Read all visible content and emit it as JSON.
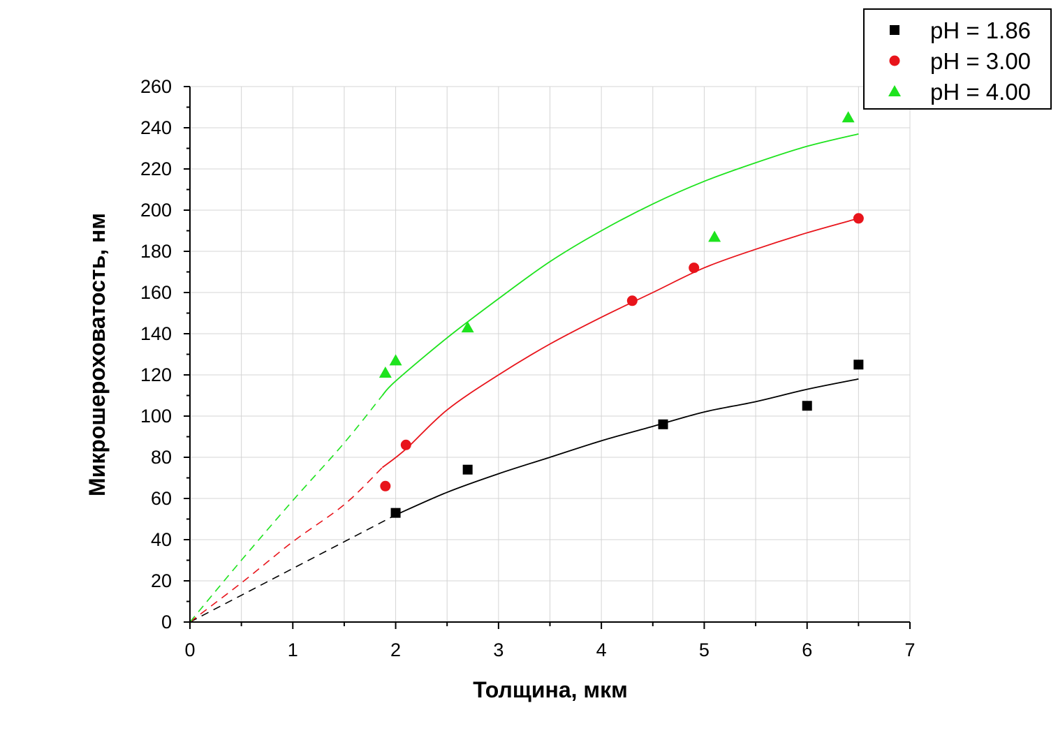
{
  "chart_data": {
    "type": "scatter",
    "xlabel": "Толщина, мкм",
    "ylabel": "Микрошероховатость, нм",
    "xlim": [
      0,
      7
    ],
    "ylim": [
      0,
      260
    ],
    "x_ticks": [
      0,
      1,
      2,
      3,
      4,
      5,
      6,
      7
    ],
    "y_ticks": [
      0,
      20,
      40,
      60,
      80,
      100,
      120,
      140,
      160,
      180,
      200,
      220,
      240,
      260
    ],
    "x_tick_labels": [
      "0",
      "1",
      "2",
      "3",
      "4",
      "5",
      "6",
      "7"
    ],
    "y_tick_labels": [
      "0",
      "20",
      "40",
      "60",
      "80",
      "100",
      "120",
      "140",
      "160",
      "180",
      "200",
      "220",
      "240",
      "260"
    ],
    "grid": true,
    "legend_position": "top-right",
    "series": [
      {
        "name": "pH = 1.86",
        "marker": "square",
        "color": "#000000",
        "points": [
          [
            2.0,
            53
          ],
          [
            2.7,
            74
          ],
          [
            4.6,
            96
          ],
          [
            6.0,
            105
          ],
          [
            6.5,
            125
          ]
        ],
        "fit_curve": [
          [
            2.0,
            52
          ],
          [
            2.5,
            63
          ],
          [
            3.0,
            72
          ],
          [
            3.5,
            80
          ],
          [
            4.0,
            88
          ],
          [
            4.5,
            95
          ],
          [
            5.0,
            102
          ],
          [
            5.5,
            107
          ],
          [
            6.0,
            113
          ],
          [
            6.5,
            118
          ]
        ],
        "extrapolation": [
          [
            0,
            0
          ],
          [
            0.5,
            13
          ],
          [
            1.0,
            26
          ],
          [
            1.5,
            39
          ],
          [
            2.0,
            52
          ]
        ]
      },
      {
        "name": "pH = 3.00",
        "marker": "circle",
        "color": "#e8141b",
        "points": [
          [
            1.9,
            66
          ],
          [
            2.1,
            86
          ],
          [
            4.3,
            156
          ],
          [
            4.9,
            172
          ],
          [
            6.5,
            196
          ]
        ],
        "fit_curve": [
          [
            1.87,
            75
          ],
          [
            2.1,
            84
          ],
          [
            2.5,
            103
          ],
          [
            3.0,
            120
          ],
          [
            3.5,
            135
          ],
          [
            4.0,
            148
          ],
          [
            4.5,
            160
          ],
          [
            5.0,
            172
          ],
          [
            5.5,
            181
          ],
          [
            6.0,
            189
          ],
          [
            6.5,
            196
          ]
        ],
        "extrapolation": [
          [
            0,
            0
          ],
          [
            0.5,
            19
          ],
          [
            1.0,
            39
          ],
          [
            1.5,
            57
          ],
          [
            1.87,
            75
          ]
        ]
      },
      {
        "name": "pH = 4.00",
        "marker": "triangle",
        "color": "#1ee31e",
        "points": [
          [
            1.9,
            121
          ],
          [
            2.0,
            127
          ],
          [
            2.7,
            143
          ],
          [
            5.1,
            187
          ],
          [
            6.4,
            245
          ]
        ],
        "fit_curve": [
          [
            1.87,
            110
          ],
          [
            2.0,
            117
          ],
          [
            2.5,
            138
          ],
          [
            3.0,
            157
          ],
          [
            3.5,
            175
          ],
          [
            4.0,
            190
          ],
          [
            4.5,
            203
          ],
          [
            5.0,
            214
          ],
          [
            5.5,
            223
          ],
          [
            6.0,
            231
          ],
          [
            6.5,
            237
          ]
        ],
        "extrapolation": [
          [
            0,
            0
          ],
          [
            0.5,
            30
          ],
          [
            1.0,
            59
          ],
          [
            1.5,
            87
          ],
          [
            1.87,
            110
          ]
        ]
      }
    ]
  }
}
